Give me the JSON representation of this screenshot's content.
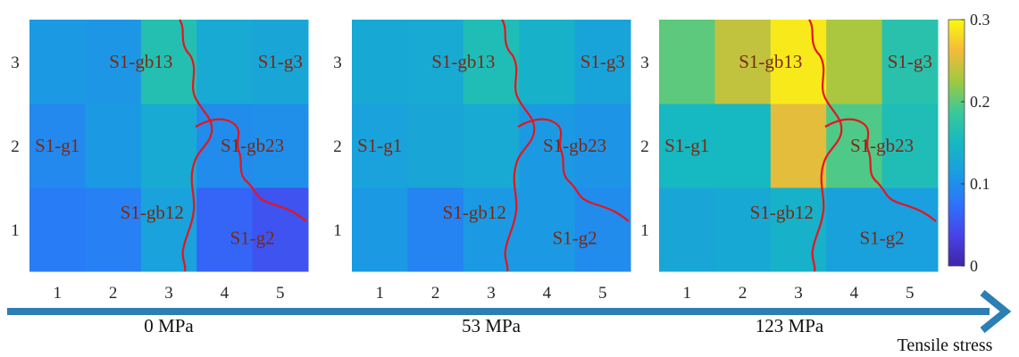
{
  "chart_data": {
    "type": "heatmap",
    "colormap": "parula",
    "colorbar": {
      "min": 0,
      "max": 0.3,
      "ticks": [
        "0",
        "0.1",
        "0.2",
        "0.3"
      ]
    },
    "x_ticks": [
      "1",
      "2",
      "3",
      "4",
      "5"
    ],
    "y_ticks": [
      "1",
      "2",
      "3"
    ],
    "cell_labels": [
      {
        "text": "S1-gb13",
        "x": 2.5,
        "y": 3
      },
      {
        "text": "S1-g3",
        "x": 5,
        "y": 3
      },
      {
        "text": "S1-g1",
        "x": 1,
        "y": 2
      },
      {
        "text": "S1-gb23",
        "x": 4.5,
        "y": 2
      },
      {
        "text": "S1-gb12",
        "x": 2.7,
        "y": 1.2
      },
      {
        "text": "S1-g2",
        "x": 4.5,
        "y": 0.9
      }
    ],
    "panels": [
      {
        "pressure": "0 MPa",
        "rows": [
          [
            0.085,
            0.087,
            0.12,
            0.065,
            0.05
          ],
          [
            0.095,
            0.11,
            0.13,
            0.098,
            0.1
          ],
          [
            0.11,
            0.107,
            0.165,
            0.13,
            0.125
          ]
        ]
      },
      {
        "pressure": "53 MPa",
        "rows": [
          [
            0.11,
            0.09,
            0.11,
            0.11,
            0.098
          ],
          [
            0.12,
            0.125,
            0.13,
            0.11,
            0.105
          ],
          [
            0.128,
            0.13,
            0.16,
            0.14,
            0.122
          ]
        ]
      },
      {
        "pressure": "123 MPa",
        "rows": [
          [
            0.125,
            0.128,
            0.14,
            0.118,
            0.115
          ],
          [
            0.15,
            0.15,
            0.255,
            0.195,
            0.16
          ],
          [
            0.2,
            0.24,
            0.29,
            0.23,
            0.17
          ]
        ]
      }
    ],
    "arrow_label": "Tensile stress"
  }
}
